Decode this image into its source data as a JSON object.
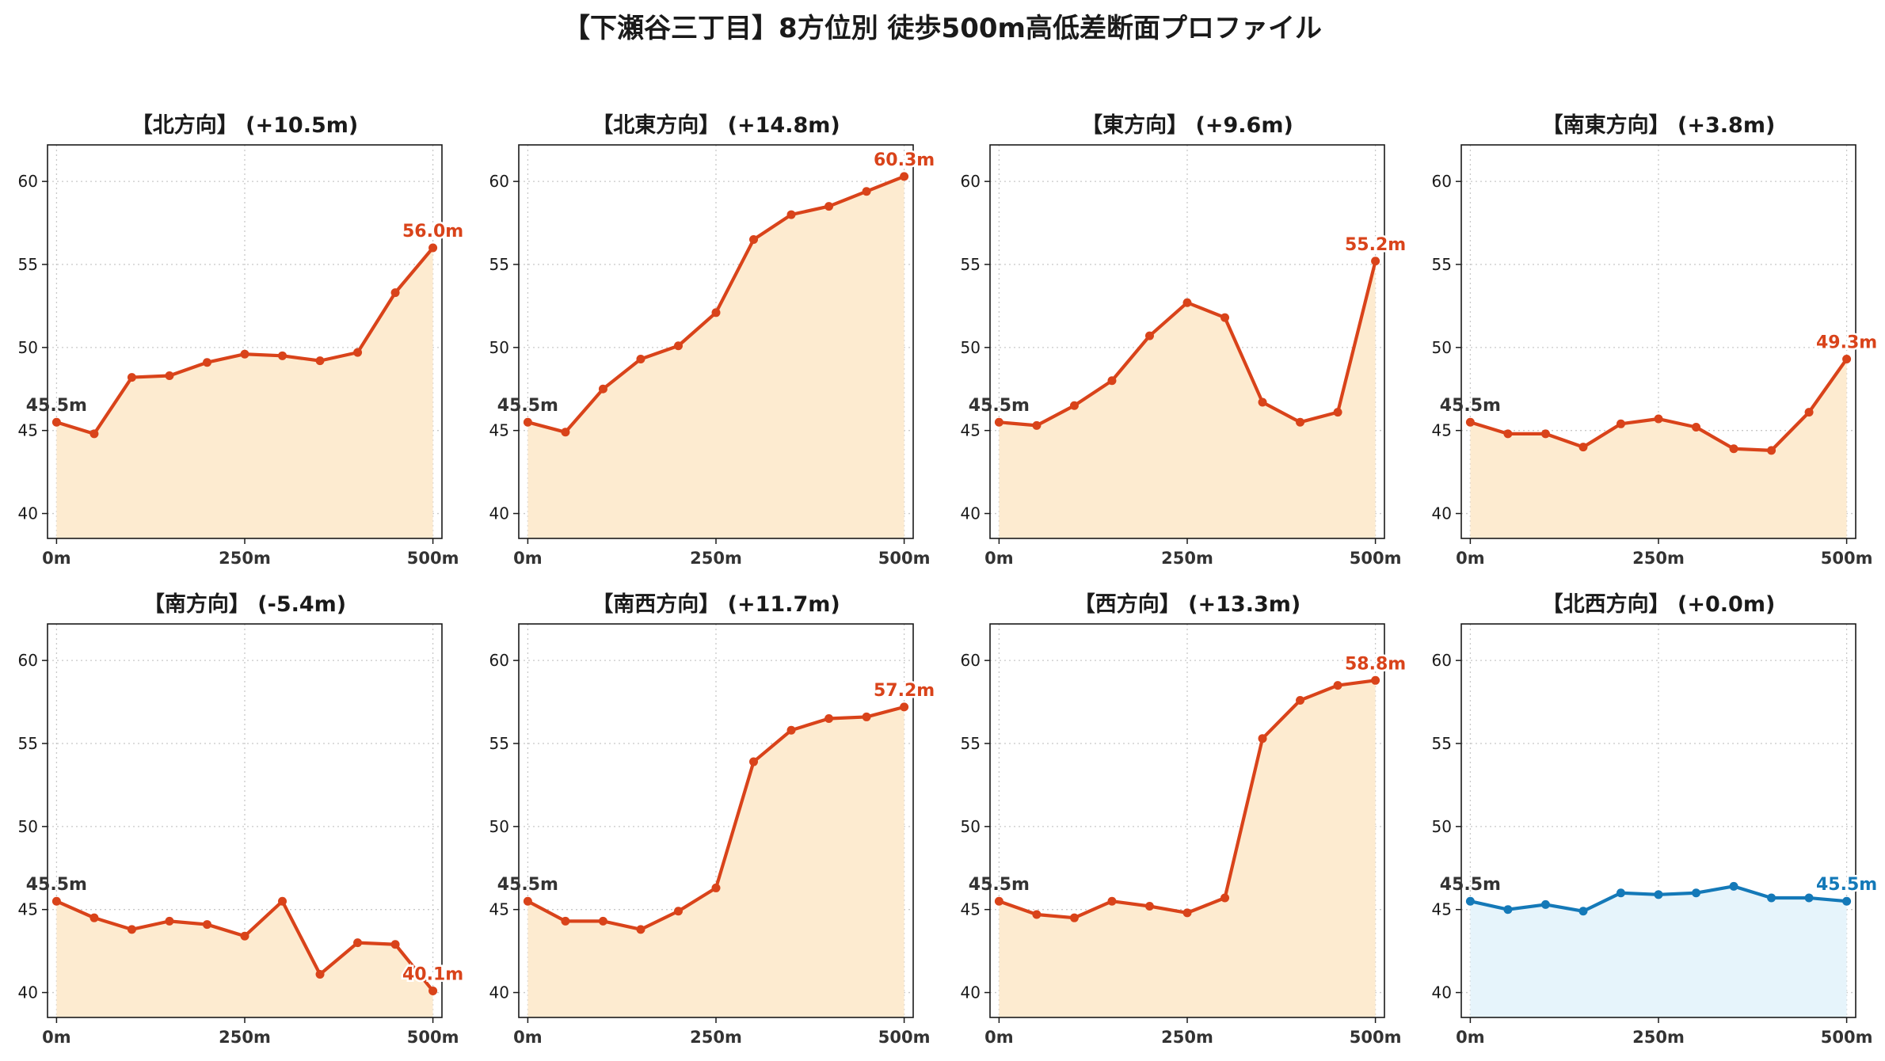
{
  "title": "【下瀬谷三丁目】8方位別 徒歩500m高低差断面プロファイル",
  "colors": {
    "up": "#d9431a",
    "up_fill": "#fdebd0",
    "flat": "#1479b8",
    "flat_fill": "#e6f4fb",
    "start_label": "#333333"
  },
  "chart_data": [
    {
      "type": "line",
      "title": "【北方向】 (+10.5m)",
      "trend": "up",
      "x": [
        0,
        50,
        100,
        150,
        200,
        250,
        300,
        350,
        400,
        450,
        500
      ],
      "y": [
        45.5,
        44.8,
        48.2,
        48.3,
        49.1,
        49.6,
        49.5,
        49.2,
        49.7,
        53.3,
        56.0
      ],
      "xticks": [
        "0m",
        "250m",
        "500m"
      ],
      "yticks": [
        40,
        45,
        50,
        55,
        60
      ],
      "ylim": [
        38.5,
        62.2
      ],
      "xlim": [
        -12,
        512
      ],
      "start_label": "45.5m",
      "end_label": "56.0m",
      "grid": true
    },
    {
      "type": "line",
      "title": "【北東方向】 (+14.8m)",
      "trend": "up",
      "x": [
        0,
        50,
        100,
        150,
        200,
        250,
        300,
        350,
        400,
        450,
        500
      ],
      "y": [
        45.5,
        44.9,
        47.5,
        49.3,
        50.1,
        52.1,
        56.5,
        58.0,
        58.5,
        59.4,
        60.3
      ],
      "xticks": [
        "0m",
        "250m",
        "500m"
      ],
      "yticks": [
        40,
        45,
        50,
        55,
        60
      ],
      "ylim": [
        38.5,
        62.2
      ],
      "xlim": [
        -12,
        512
      ],
      "start_label": "45.5m",
      "end_label": "60.3m",
      "grid": true
    },
    {
      "type": "line",
      "title": "【東方向】 (+9.6m)",
      "trend": "up",
      "x": [
        0,
        50,
        100,
        150,
        200,
        250,
        300,
        350,
        400,
        450,
        500
      ],
      "y": [
        45.5,
        45.3,
        46.5,
        48.0,
        50.7,
        52.7,
        51.8,
        46.7,
        45.5,
        46.1,
        55.2
      ],
      "xticks": [
        "0m",
        "250m",
        "500m"
      ],
      "yticks": [
        40,
        45,
        50,
        55,
        60
      ],
      "ylim": [
        38.5,
        62.2
      ],
      "xlim": [
        -12,
        512
      ],
      "start_label": "45.5m",
      "end_label": "55.2m",
      "grid": true
    },
    {
      "type": "line",
      "title": "【南東方向】 (+3.8m)",
      "trend": "up",
      "x": [
        0,
        50,
        100,
        150,
        200,
        250,
        300,
        350,
        400,
        450,
        500
      ],
      "y": [
        45.5,
        44.8,
        44.8,
        44.0,
        45.4,
        45.7,
        45.2,
        43.9,
        43.8,
        46.1,
        49.3
      ],
      "xticks": [
        "0m",
        "250m",
        "500m"
      ],
      "yticks": [
        40,
        45,
        50,
        55,
        60
      ],
      "ylim": [
        38.5,
        62.2
      ],
      "xlim": [
        -12,
        512
      ],
      "start_label": "45.5m",
      "end_label": "49.3m",
      "grid": true
    },
    {
      "type": "line",
      "title": "【南方向】 (-5.4m)",
      "trend": "up",
      "x": [
        0,
        50,
        100,
        150,
        200,
        250,
        300,
        350,
        400,
        450,
        500
      ],
      "y": [
        45.5,
        44.5,
        43.8,
        44.3,
        44.1,
        43.4,
        45.5,
        41.1,
        43.0,
        42.9,
        40.1
      ],
      "xticks": [
        "0m",
        "250m",
        "500m"
      ],
      "yticks": [
        40,
        45,
        50,
        55,
        60
      ],
      "ylim": [
        38.5,
        62.2
      ],
      "xlim": [
        -12,
        512
      ],
      "start_label": "45.5m",
      "end_label": "40.1m",
      "grid": true
    },
    {
      "type": "line",
      "title": "【南西方向】 (+11.7m)",
      "trend": "up",
      "x": [
        0,
        50,
        100,
        150,
        200,
        250,
        300,
        350,
        400,
        450,
        500
      ],
      "y": [
        45.5,
        44.3,
        44.3,
        43.8,
        44.9,
        46.3,
        53.9,
        55.8,
        56.5,
        56.6,
        57.2
      ],
      "xticks": [
        "0m",
        "250m",
        "500m"
      ],
      "yticks": [
        40,
        45,
        50,
        55,
        60
      ],
      "ylim": [
        38.5,
        62.2
      ],
      "xlim": [
        -12,
        512
      ],
      "start_label": "45.5m",
      "end_label": "57.2m",
      "grid": true
    },
    {
      "type": "line",
      "title": "【西方向】 (+13.3m)",
      "trend": "up",
      "x": [
        0,
        50,
        100,
        150,
        200,
        250,
        300,
        350,
        400,
        450,
        500
      ],
      "y": [
        45.5,
        44.7,
        44.5,
        45.5,
        45.2,
        44.8,
        45.7,
        55.3,
        57.6,
        58.5,
        58.8
      ],
      "xticks": [
        "0m",
        "250m",
        "500m"
      ],
      "yticks": [
        40,
        45,
        50,
        55,
        60
      ],
      "ylim": [
        38.5,
        62.2
      ],
      "xlim": [
        -12,
        512
      ],
      "start_label": "45.5m",
      "end_label": "58.8m",
      "grid": true
    },
    {
      "type": "line",
      "title": "【北西方向】 (+0.0m)",
      "trend": "flat",
      "x": [
        0,
        50,
        100,
        150,
        200,
        250,
        300,
        350,
        400,
        450,
        500
      ],
      "y": [
        45.5,
        45.0,
        45.3,
        44.9,
        46.0,
        45.9,
        46.0,
        46.4,
        45.7,
        45.7,
        45.5
      ],
      "xticks": [
        "0m",
        "250m",
        "500m"
      ],
      "yticks": [
        40,
        45,
        50,
        55,
        60
      ],
      "ylim": [
        38.5,
        62.2
      ],
      "xlim": [
        -12,
        512
      ],
      "start_label": "45.5m",
      "end_label": "45.5m",
      "grid": true
    }
  ]
}
